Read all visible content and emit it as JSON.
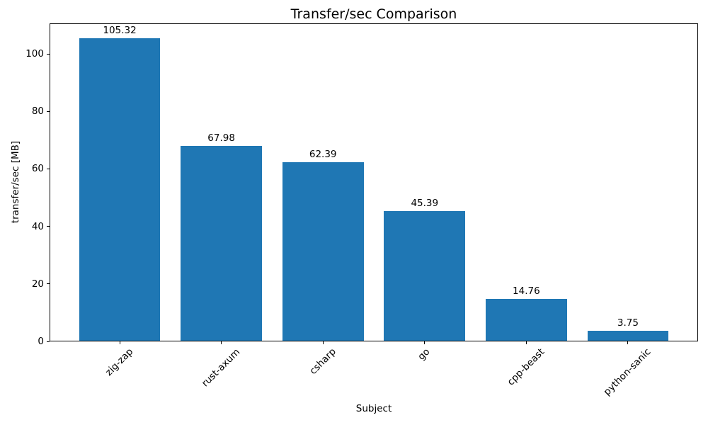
{
  "chart_data": {
    "type": "bar",
    "title": "Transfer/sec Comparison",
    "xlabel": "Subject",
    "ylabel": "transfer/sec [MB]",
    "categories": [
      "zig-zap",
      "rust-axum",
      "csharp",
      "go",
      "cpp-beast",
      "python-sanic"
    ],
    "values": [
      105.32,
      67.98,
      62.39,
      45.39,
      14.76,
      3.75
    ],
    "bar_value_labels": [
      "105.32",
      "67.98",
      "62.39",
      "45.39",
      "14.76",
      "3.75"
    ],
    "yticks": [
      0,
      20,
      40,
      60,
      80,
      100
    ],
    "ylim": [
      0,
      110.6
    ],
    "bar_color": "#1f77b4",
    "text_color": "#000000",
    "grid": false,
    "legend": null,
    "x_tick_rotation_deg": 45
  }
}
